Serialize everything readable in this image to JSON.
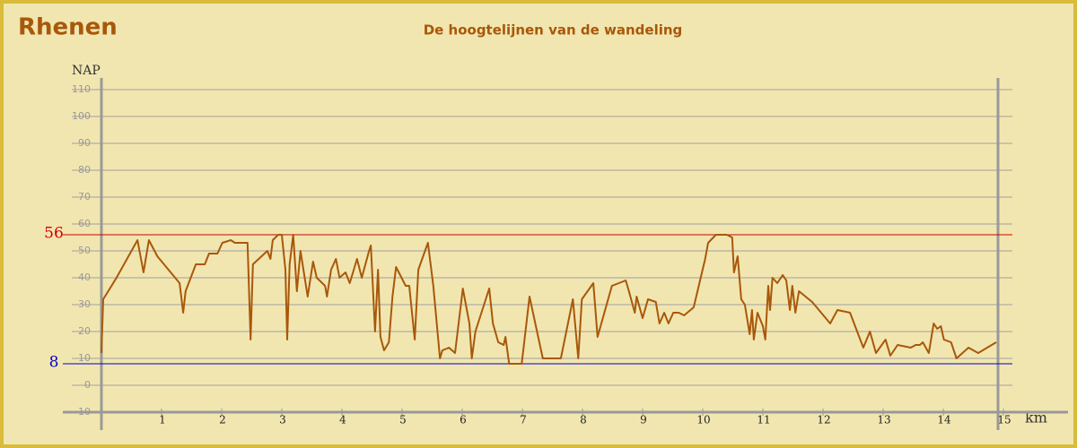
{
  "chart_data": {
    "type": "line",
    "title": "Rhenen",
    "subtitle": "De hoogtelijnen van de wandeling",
    "ylabel": "NAP",
    "xlabel": "km",
    "color": "#a8580a",
    "x": [
      0,
      0.03,
      0.25,
      0.6,
      0.7,
      0.79,
      0.93,
      1.3,
      1.36,
      1.4,
      1.57,
      1.72,
      1.79,
      1.93,
      2.01,
      2.15,
      2.22,
      2.43,
      2.48,
      2.52,
      2.76,
      2.81,
      2.85,
      2.94,
      3.0,
      3.06,
      3.09,
      3.13,
      3.19,
      3.25,
      3.31,
      3.43,
      3.52,
      3.58,
      3.72,
      3.75,
      3.82,
      3.9,
      3.96,
      4.06,
      4.13,
      4.25,
      4.33,
      4.45,
      4.48,
      4.55,
      4.6,
      4.64,
      4.7,
      4.78,
      4.84,
      4.9,
      5.06,
      5.12,
      5.21,
      5.27,
      5.43,
      5.52,
      5.63,
      5.67,
      5.78,
      5.88,
      6.01,
      6.12,
      6.16,
      6.22,
      6.45,
      6.51,
      6.6,
      6.69,
      6.72,
      6.78,
      6.99,
      7.12,
      7.34,
      7.64,
      7.84,
      7.93,
      7.99,
      8.18,
      8.25,
      8.49,
      8.72,
      8.76,
      8.87,
      8.9,
      9.0,
      9.09,
      9.22,
      9.28,
      9.36,
      9.43,
      9.51,
      9.6,
      9.69,
      9.85,
      10.04,
      10.09,
      10.22,
      10.4,
      10.49,
      10.52,
      10.58,
      10.64,
      10.7,
      10.78,
      10.82,
      10.85,
      10.91,
      11.0,
      11.04,
      11.09,
      11.12,
      11.16,
      11.24,
      11.33,
      11.39,
      11.45,
      11.49,
      11.54,
      11.6,
      11.82,
      12.12,
      12.24,
      12.45,
      12.67,
      12.78,
      12.88,
      13.04,
      13.12,
      13.24,
      13.46,
      13.54,
      13.61,
      13.66,
      13.76,
      13.84,
      13.9,
      13.96,
      14.01,
      14.13,
      14.22,
      14.42,
      14.58,
      14.73,
      14.88
    ],
    "values": [
      12,
      32,
      40,
      54,
      42,
      54,
      48,
      38,
      27,
      35,
      45,
      45,
      49,
      49,
      53,
      54,
      53,
      53,
      17,
      45,
      50,
      47,
      54,
      56,
      56,
      43,
      17,
      45,
      56,
      35,
      50,
      33,
      46,
      40,
      37,
      33,
      43,
      47,
      40,
      42,
      38,
      47,
      40,
      50,
      52,
      20,
      43,
      18,
      13,
      16,
      33,
      44,
      37,
      37,
      17,
      43,
      53,
      37,
      10,
      13,
      14,
      12,
      36,
      23,
      10,
      20,
      36,
      23,
      16,
      15,
      18,
      8,
      8,
      33,
      10,
      10,
      32,
      10,
      32,
      38,
      18,
      37,
      39,
      36,
      27,
      33,
      25,
      32,
      31,
      23,
      27,
      23,
      27,
      27,
      26,
      29,
      47,
      53,
      56,
      56,
      55,
      42,
      48,
      32,
      30,
      19,
      28,
      17,
      27,
      22,
      17,
      37,
      28,
      40,
      38,
      41,
      39,
      28,
      37,
      27,
      35,
      31,
      23,
      28,
      27,
      14,
      20,
      12,
      17,
      11,
      15,
      14,
      15,
      15,
      16,
      12,
      23,
      21,
      22,
      17,
      16,
      10,
      14,
      12,
      14,
      16
    ],
    "xlim": [
      0,
      15
    ],
    "ylim": [
      -10,
      110
    ],
    "xticks": [
      1,
      2,
      3,
      4,
      5,
      6,
      7,
      8,
      9,
      10,
      11,
      12,
      13,
      14,
      15
    ],
    "yticks": [
      -10,
      0,
      10,
      20,
      30,
      40,
      50,
      60,
      70,
      80,
      90,
      100,
      110
    ],
    "grid": true,
    "max_line": {
      "value": 56,
      "color": "#d00000"
    },
    "min_line": {
      "value": 8,
      "color": "#0000cc"
    }
  }
}
